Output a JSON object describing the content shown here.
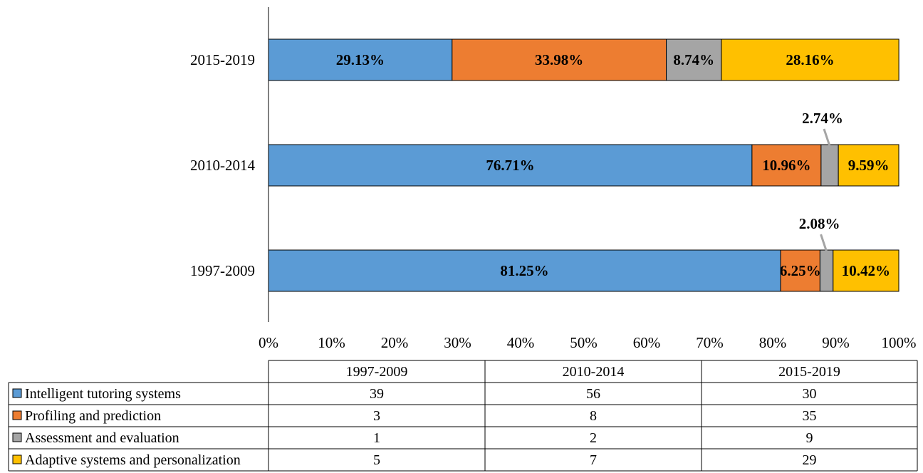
{
  "chart_data": {
    "type": "bar",
    "orientation": "horizontal",
    "stacked": true,
    "normalized_percent": true,
    "categories": [
      "2015-2019",
      "2010-2014",
      "1997-2009"
    ],
    "series": [
      {
        "name": "Intelligent tutoring systems",
        "color": "#5B9BD5",
        "values": [
          29.13,
          76.71,
          81.25
        ],
        "labels": [
          "29.13%",
          "76.71%",
          "81.25%"
        ]
      },
      {
        "name": "Profiling and prediction",
        "color": "#ED7D31",
        "values": [
          33.98,
          10.96,
          6.25
        ],
        "labels": [
          "33.98%",
          "10.96%",
          "6.25%"
        ]
      },
      {
        "name": "Assessment and evaluation",
        "color": "#A5A5A5",
        "values": [
          8.74,
          2.74,
          2.08
        ],
        "labels": [
          "8.74%",
          "2.74%",
          "2.08%"
        ]
      },
      {
        "name": "Adaptive systems and personalization",
        "color": "#FFC000",
        "values": [
          28.16,
          9.59,
          10.42
        ],
        "labels": [
          "28.16%",
          "9.59%",
          "10.42%"
        ]
      }
    ],
    "x_ticks": [
      "0%",
      "10%",
      "20%",
      "30%",
      "40%",
      "50%",
      "60%",
      "70%",
      "80%",
      "90%",
      "100%"
    ],
    "xlim": [
      0,
      100
    ],
    "title": "",
    "xlabel": "",
    "ylabel": "",
    "grid": false,
    "legend": "data-table-below",
    "table": {
      "columns": [
        "1997-2009",
        "2010-2014",
        "2015-2019"
      ],
      "rows": [
        {
          "name": "Intelligent tutoring systems",
          "values": [
            "39",
            "56",
            "30"
          ]
        },
        {
          "name": "Profiling and prediction",
          "values": [
            "3",
            "8",
            "35"
          ]
        },
        {
          "name": "Assessment and evaluation",
          "values": [
            "1",
            "2",
            "9"
          ]
        },
        {
          "name": "Adaptive systems and personalization",
          "values": [
            "5",
            "7",
            "29"
          ]
        }
      ]
    }
  }
}
